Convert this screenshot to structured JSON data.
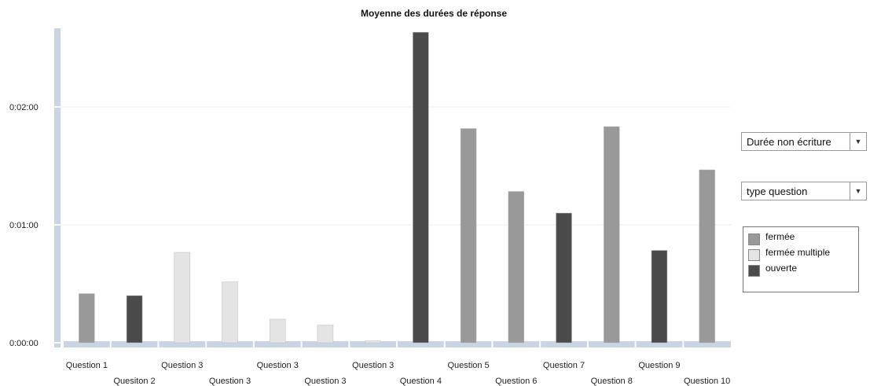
{
  "chart_data": {
    "type": "bar",
    "title": "Moyenne des durées de réponse",
    "xlabel": "",
    "ylabel": "",
    "ylim": [
      0,
      160
    ],
    "y_unit": "seconds",
    "y_ticks": [
      {
        "value": 0,
        "label": "0:00:00"
      },
      {
        "value": 60,
        "label": "0:01:00"
      },
      {
        "value": 120,
        "label": "0:02:00"
      }
    ],
    "grid": true,
    "legend_position": "right",
    "categories": [
      "Question 1",
      "Quesiton 2",
      "Question 3",
      "Question 3",
      "Question 3",
      "Question 3",
      "Question 3",
      "Question 4",
      "Question 5",
      "Question 6",
      "Question 7",
      "Question 8",
      "Question 9",
      "Question 10"
    ],
    "values": [
      25,
      24,
      46,
      31,
      12,
      9,
      1,
      158,
      109,
      77,
      66,
      110,
      47,
      88
    ],
    "value_types": [
      "fermée",
      "ouverte",
      "fermée multiple",
      "fermée multiple",
      "fermée multiple",
      "fermée multiple",
      "fermée multiple",
      "ouverte",
      "fermée",
      "fermée",
      "ouverte",
      "fermée",
      "ouverte",
      "fermée"
    ],
    "legend": [
      {
        "name": "fermée",
        "color": "#999999"
      },
      {
        "name": "fermée multiple",
        "color": "#e4e4e4"
      },
      {
        "name": "ouverte",
        "color": "#4b4b4b"
      }
    ]
  },
  "controls": {
    "metric_select": {
      "value": "Durée non écriture"
    },
    "group_select": {
      "value": "type question"
    }
  },
  "icons": {
    "dropdown_arrow": "chevron-down-icon"
  },
  "colors": {
    "axis": "#c9d5e3",
    "gridline": "#ececec"
  }
}
